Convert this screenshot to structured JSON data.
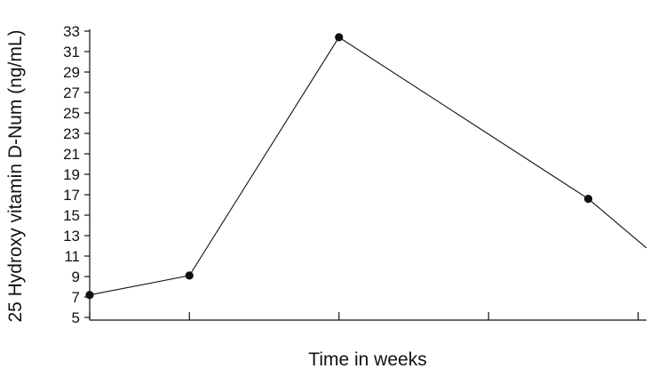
{
  "chart_data": {
    "type": "line",
    "title": "",
    "xlabel": "Time in weeks",
    "ylabel": "25 Hydroxy vitamin D-Num (ng/mL)",
    "ylim": [
      5,
      33
    ],
    "yticks": [
      "5",
      "7",
      "9",
      "11",
      "13",
      "15",
      "17",
      "19",
      "21",
      "23",
      "25",
      "27",
      "29",
      "31",
      "33"
    ],
    "x": [
      0,
      12,
      30,
      60,
      67
    ],
    "xlim": [
      0,
      67
    ],
    "x_tick_marks": [
      0,
      12,
      30,
      48,
      66
    ],
    "grid": false,
    "legend": "none",
    "series": [
      {
        "values": [
          7.2,
          9.1,
          32.4,
          16.6,
          11.8
        ],
        "markers": [
          true,
          true,
          true,
          true,
          false
        ],
        "color": "#111111"
      }
    ]
  }
}
